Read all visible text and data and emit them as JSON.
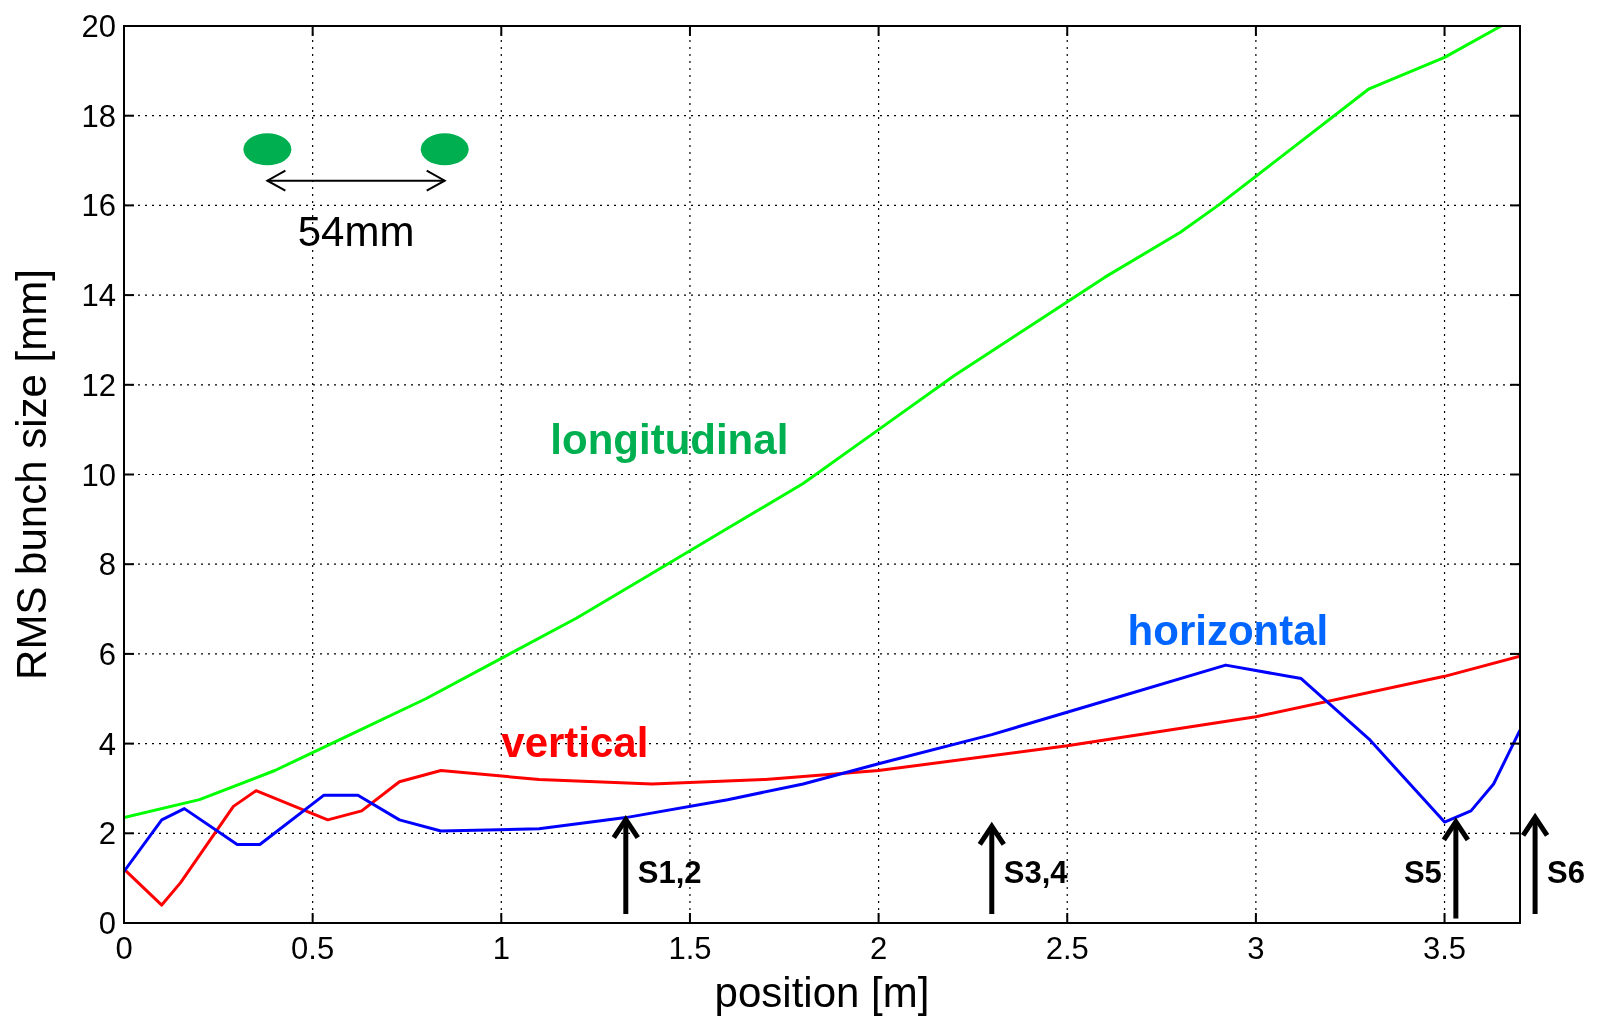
{
  "chart_data": {
    "type": "line",
    "xlabel": "position [m]",
    "ylabel": "RMS bunch size [mm]",
    "xlim": [
      0,
      3.7
    ],
    "xticks": [
      0,
      0.5,
      1,
      1.5,
      2,
      2.5,
      3,
      3.5
    ],
    "ylim": [
      0,
      20
    ],
    "yticks": [
      0,
      2,
      4,
      6,
      8,
      10,
      12,
      14,
      16,
      18,
      20
    ],
    "grid": true,
    "line_style": "solid",
    "series": [
      {
        "name": "longitudinal",
        "color": "#00ff00",
        "x": [
          0,
          0.2,
          0.4,
          0.6,
          0.8,
          1.0,
          1.2,
          1.4,
          1.6,
          1.8,
          2.0,
          2.2,
          2.4,
          2.6,
          2.8,
          2.9,
          3.1,
          3.3,
          3.5,
          3.65
        ],
        "values": [
          2.35,
          2.75,
          3.4,
          4.2,
          5.0,
          5.9,
          6.8,
          7.8,
          8.8,
          9.8,
          11.0,
          12.2,
          13.3,
          14.4,
          15.4,
          16.0,
          17.3,
          18.6,
          19.3,
          20.0
        ]
      },
      {
        "name": "vertical",
        "color": "#ff0000",
        "x": [
          0,
          0.1,
          0.15,
          0.29,
          0.35,
          0.54,
          0.63,
          0.73,
          0.84,
          1.1,
          1.4,
          1.7,
          2.0,
          2.5,
          3.0,
          3.5,
          3.7
        ],
        "values": [
          1.2,
          0.4,
          0.9,
          2.6,
          2.95,
          2.3,
          2.5,
          3.15,
          3.4,
          3.2,
          3.1,
          3.2,
          3.4,
          3.95,
          4.6,
          5.5,
          5.95
        ]
      },
      {
        "name": "horizontal",
        "color": "#0000ff",
        "x": [
          0,
          0.1,
          0.16,
          0.3,
          0.36,
          0.53,
          0.62,
          0.73,
          0.84,
          1.1,
          1.33,
          1.6,
          1.8,
          2.0,
          2.3,
          2.6,
          2.92,
          3.12,
          3.3,
          3.5,
          3.57,
          3.63,
          3.7
        ],
        "values": [
          1.15,
          2.3,
          2.55,
          1.75,
          1.75,
          2.85,
          2.85,
          2.3,
          2.05,
          2.1,
          2.35,
          2.75,
          3.1,
          3.55,
          4.2,
          4.95,
          5.75,
          5.45,
          4.1,
          2.25,
          2.5,
          3.1,
          4.3
        ]
      }
    ],
    "annotations": [
      "54mm",
      "S1,2",
      "S3,4",
      "S5",
      "S6"
    ]
  }
}
